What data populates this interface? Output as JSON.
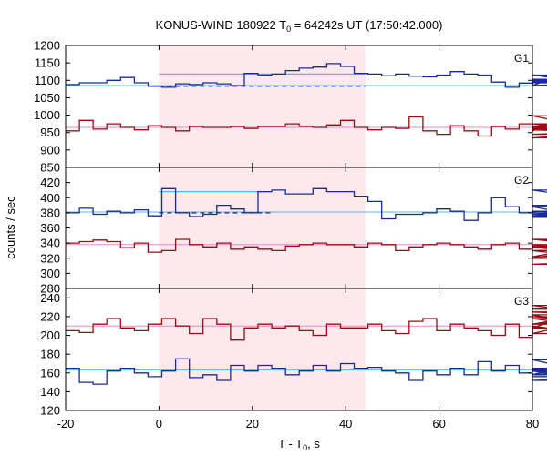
{
  "chart_data": {
    "type": "line",
    "title": "KONUS-WIND 180922 T",
    "title_sub": "0",
    "title_rest": " = 64242s UT (17:50:42.000)",
    "xlabel": "T - T",
    "xlabel_sub": "0",
    "xlabel_rest": ", s",
    "ylabel": "counts / sec",
    "xlim": [
      -20,
      80
    ],
    "x_ticks": [
      "-20",
      "0",
      "20",
      "40",
      "60",
      "80"
    ],
    "highlight_interval": [
      0,
      44.2
    ],
    "colors": {
      "frame": "#000000",
      "highlight": "#fde8ec",
      "series_blue": "#1a2a9c",
      "series_red": "#9c0a14",
      "bg_blue": "#5ab4e6",
      "bg_pink": "#e78ad0"
    },
    "panels": [
      {
        "label": "G1",
        "ylim": [
          850,
          1200
        ],
        "y_ticks": [
          850,
          900,
          950,
          1000,
          1050,
          1100,
          1150,
          1200
        ],
        "y_tick_labels": [
          "850",
          "900",
          "950",
          "1000",
          "1050",
          "1100",
          "1150",
          "1200"
        ],
        "background_blue": 1085,
        "background_pink": 965,
        "burst_level": {
          "x0": 0,
          "x1": 44.2,
          "y_bg": 1083,
          "y_top": 1118
        },
        "series": [
          {
            "color_key": "series_blue",
            "step": 2.944,
            "values": [
              1088,
              1093,
              1093,
              1100,
              1108,
              1093,
              1083,
              1080,
              1090,
              1088,
              1093,
              1090,
              1085,
              1120,
              1115,
              1118,
              1128,
              1135,
              1138,
              1148,
              1140,
              1120,
              1118,
              1113,
              1118,
              1112,
              1110,
              1115,
              1125,
              1118,
              1115,
              1095,
              1080,
              1092,
              1085,
              1100,
              1093,
              1115,
              1095,
              1103,
              1085,
              1085,
              1085,
              1098,
              1085,
              1098,
              1085
            ]
          },
          {
            "color_key": "series_red",
            "step": 2.944,
            "values": [
              955,
              985,
              960,
              975,
              965,
              958,
              970,
              965,
              955,
              968,
              965,
              965,
              968,
              962,
              968,
              968,
              975,
              968,
              965,
              972,
              985,
              965,
              958,
              965,
              962,
              995,
              955,
              945,
              970,
              955,
              940,
              968,
              960,
              975,
              955,
              968,
              975,
              965,
              998,
              958,
              965,
              963,
              935,
              958,
              945,
              960,
              958
            ]
          }
        ]
      },
      {
        "label": "G2",
        "ylim": [
          280,
          440
        ],
        "y_ticks": [
          280,
          300,
          320,
          340,
          360,
          380,
          400,
          420
        ],
        "y_tick_labels": [
          "280",
          "300",
          "320",
          "340",
          "360",
          "380",
          "400",
          "420"
        ],
        "background_blue": 381,
        "background_pink": 338,
        "burst_level": {
          "x0": 0,
          "x1": 24.0,
          "y_bg": 380,
          "y_top": 408
        },
        "series": [
          {
            "color_key": "series_blue",
            "step": 2.944,
            "values": [
              380,
              386,
              378,
              382,
              380,
              384,
              376,
              412,
              380,
              375,
              378,
              390,
              385,
              380,
              408,
              410,
              405,
              405,
              412,
              408,
              408,
              402,
              395,
              372,
              378,
              378,
              380,
              385,
              382,
              370,
              380,
              400,
              388,
              380,
              382,
              374,
              388,
              378,
              380,
              376,
              382,
              380,
              374,
              390,
              388,
              410,
              380
            ]
          },
          {
            "color_key": "series_red",
            "step": 2.944,
            "values": [
              340,
              342,
              344,
              342,
              334,
              340,
              328,
              330,
              345,
              338,
              335,
              340,
              332,
              335,
              332,
              330,
              336,
              338,
              340,
              338,
              338,
              335,
              340,
              338,
              330,
              335,
              338,
              340,
              338,
              335,
              332,
              338,
              340,
              332,
              336,
              334,
              338,
              330,
              322,
              338,
              335,
              320,
              345,
              330,
              335,
              312,
              320
            ]
          }
        ]
      },
      {
        "label": "G3",
        "ylim": [
          120,
          250
        ],
        "y_ticks": [
          120,
          140,
          160,
          180,
          200,
          220,
          240
        ],
        "y_tick_labels": [
          "120",
          "140",
          "160",
          "180",
          "200",
          "220",
          "240"
        ],
        "background_blue": 163,
        "background_pink": 210,
        "burst_level": null,
        "series": [
          {
            "color_key": "series_blue",
            "step": 2.944,
            "values": [
              165,
              150,
              148,
              162,
              165,
              160,
              156,
              162,
              175,
              155,
              158,
              152,
              168,
              162,
              168,
              165,
              158,
              162,
              168,
              162,
              170,
              165,
              166,
              162,
              160,
              152,
              162,
              158,
              165,
              158,
              172,
              162,
              168,
              160,
              158,
              162,
              158,
              162,
              174,
              158,
              163,
              152,
              156,
              158,
              165,
              162,
              163
            ]
          },
          {
            "color_key": "series_red",
            "step": 2.944,
            "values": [
              205,
              203,
              212,
              218,
              208,
              205,
              212,
              218,
              210,
              202,
              218,
              212,
              195,
              208,
              212,
              208,
              210,
              205,
              200,
              212,
              208,
              208,
              212,
              205,
              202,
              215,
              218,
              205,
              212,
              208,
              205,
              200,
              212,
              198,
              210,
              208,
              218,
              212,
              222,
              208,
              202,
              225,
              220,
              212,
              228,
              232,
              208
            ]
          }
        ]
      }
    ]
  }
}
